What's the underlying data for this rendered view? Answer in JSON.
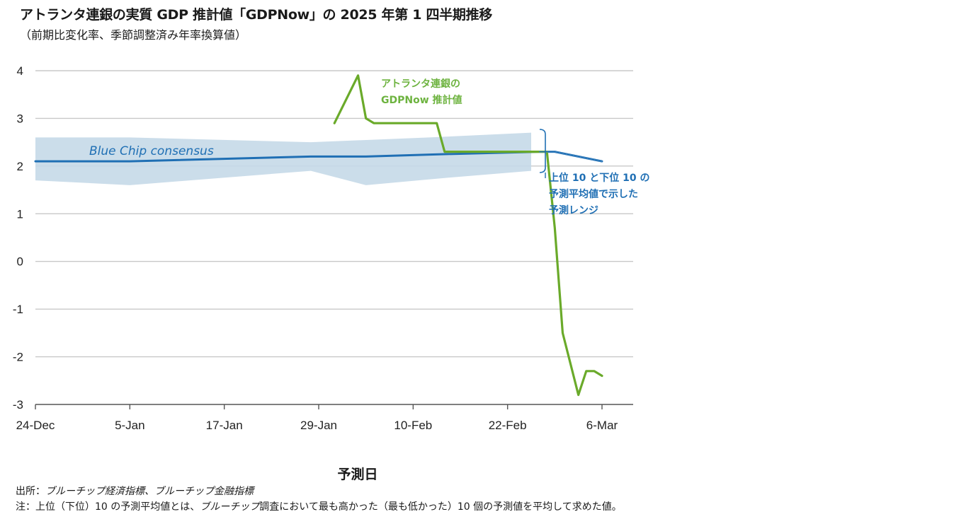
{
  "page": {
    "title": "アトランタ連銀の実質 GDP 推計値「GDPNow」の 2025 年第 1 四半期推移",
    "subtitle": "（前期比変化率、季節調整済み年率換算値）",
    "source_prefix": "出所：",
    "source_text": "ブルーチップ経済指標、ブルーチップ金融指標",
    "note_prefix": "注：上位（下位）10 の予測平均値とは、",
    "note_italic": "ブルーチップ",
    "note_suffix": "調査において最も高かった（最も低かった）10 個の予測値を平均して求めた値。"
  },
  "colors": {
    "gdpnow": "#6aaa2a",
    "consensus": "#1f6fb4",
    "band": "#c5d9e8",
    "grid": "#c8c8c8",
    "axis": "#555555"
  },
  "chart_data": {
    "type": "line",
    "xlabel": "予測日",
    "ylabel": "",
    "ylim": [
      -3,
      4
    ],
    "yticks": [
      4,
      3,
      2,
      1,
      0,
      -1,
      -2,
      -3
    ],
    "ytick_labels": [
      "4",
      "3",
      "2",
      "1",
      "0",
      "-1",
      "-2",
      "-3"
    ],
    "xlim_days": [
      0,
      72
    ],
    "xticks": [
      {
        "day": 0,
        "label": "24-Dec"
      },
      {
        "day": 12,
        "label": "5-Jan"
      },
      {
        "day": 24,
        "label": "17-Jan"
      },
      {
        "day": 36,
        "label": "29-Jan"
      },
      {
        "day": 48,
        "label": "10-Feb"
      },
      {
        "day": 60,
        "label": "22-Feb"
      },
      {
        "day": 72,
        "label": "6-Mar"
      }
    ],
    "band": {
      "name": "上位 10 と下位 10 の予測平均値で示した予測レンジ",
      "upper": [
        [
          0,
          2.6
        ],
        [
          12,
          2.6
        ],
        [
          35,
          2.5
        ],
        [
          50,
          2.6
        ],
        [
          63,
          2.7
        ]
      ],
      "lower": [
        [
          0,
          1.7
        ],
        [
          12,
          1.6
        ],
        [
          35,
          1.9
        ],
        [
          42,
          1.6
        ],
        [
          52,
          1.75
        ],
        [
          63,
          1.9
        ]
      ]
    },
    "series": [
      {
        "name": "Blue Chip consensus",
        "color": "#1f6fb4",
        "points": [
          [
            0,
            2.1
          ],
          [
            12,
            2.1
          ],
          [
            35,
            2.2
          ],
          [
            42,
            2.2
          ],
          [
            52,
            2.25
          ],
          [
            64,
            2.3
          ],
          [
            66,
            2.3
          ],
          [
            72,
            2.1
          ]
        ]
      },
      {
        "name": "アトランタ連銀の GDPNow 推計値",
        "color": "#6aaa2a",
        "points": [
          [
            38,
            2.9
          ],
          [
            41,
            3.9
          ],
          [
            42,
            3.0
          ],
          [
            43,
            2.9
          ],
          [
            51,
            2.9
          ],
          [
            52,
            2.3
          ],
          [
            64,
            2.3
          ],
          [
            65,
            2.3
          ],
          [
            66,
            0.7
          ],
          [
            67,
            -1.5
          ],
          [
            69,
            -2.8
          ],
          [
            70,
            -2.3
          ],
          [
            71,
            -2.3
          ],
          [
            72,
            -2.4
          ]
        ]
      }
    ],
    "annotations": {
      "gdpnow_line1": "アトランタ連銀の",
      "gdpnow_line2": "GDPNow 推計値",
      "consensus_label": "Blue Chip consensus",
      "range_line1": "上位 10 と下位 10 の",
      "range_line2": "予測平均値で示した",
      "range_line3": "予測レンジ"
    }
  }
}
